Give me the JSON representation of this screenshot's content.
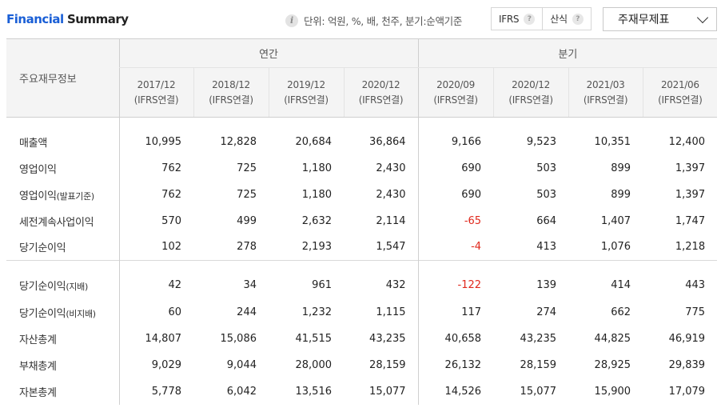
{
  "header": {
    "title_part1": "Financial",
    "title_part2": "Summary",
    "unit_text": "단위: 억원, %, 배, 천주, 분기:순액기준",
    "ifrs_label": "IFRS",
    "calc_label": "산식",
    "dropdown_value": "주재무제표"
  },
  "table": {
    "row_header": "주요재무정보",
    "group_annual": "연간",
    "group_quarter": "분기",
    "columns": [
      {
        "period": "2017/12",
        "basis": "(IFRS연결)"
      },
      {
        "period": "2018/12",
        "basis": "(IFRS연결)"
      },
      {
        "period": "2019/12",
        "basis": "(IFRS연결)"
      },
      {
        "period": "2020/12",
        "basis": "(IFRS연결)"
      },
      {
        "period": "2020/09",
        "basis": "(IFRS연결)"
      },
      {
        "period": "2020/12",
        "basis": "(IFRS연결)"
      },
      {
        "period": "2021/03",
        "basis": "(IFRS연결)"
      },
      {
        "period": "2021/06",
        "basis": "(IFRS연결)"
      }
    ],
    "rows": [
      {
        "label": "매출액",
        "sub": "",
        "values": [
          "10,995",
          "12,828",
          "20,684",
          "36,864",
          "9,166",
          "9,523",
          "10,351",
          "12,400"
        ]
      },
      {
        "label": "영업이익",
        "sub": "",
        "values": [
          "762",
          "725",
          "1,180",
          "2,430",
          "690",
          "503",
          "899",
          "1,397"
        ]
      },
      {
        "label": "영업이익",
        "sub": "(발표기준)",
        "values": [
          "762",
          "725",
          "1,180",
          "2,430",
          "690",
          "503",
          "899",
          "1,397"
        ]
      },
      {
        "label": "세전계속사업이익",
        "sub": "",
        "values": [
          "570",
          "499",
          "2,632",
          "2,114",
          "-65",
          "664",
          "1,407",
          "1,747"
        ]
      },
      {
        "label": "당기순이익",
        "sub": "",
        "values": [
          "102",
          "278",
          "2,193",
          "1,547",
          "-4",
          "413",
          "1,076",
          "1,218"
        ]
      },
      {
        "label": "당기순이익",
        "sub": "(지배)",
        "values": [
          "42",
          "34",
          "961",
          "432",
          "-122",
          "139",
          "414",
          "443"
        ]
      },
      {
        "label": "당기순이익",
        "sub": "(비지배)",
        "values": [
          "60",
          "244",
          "1,232",
          "1,115",
          "117",
          "274",
          "662",
          "775"
        ]
      },
      {
        "label": "자산총계",
        "sub": "",
        "values": [
          "14,807",
          "15,086",
          "41,515",
          "43,235",
          "40,658",
          "43,235",
          "44,825",
          "46,919"
        ]
      },
      {
        "label": "부채총계",
        "sub": "",
        "values": [
          "9,029",
          "9,044",
          "28,000",
          "28,159",
          "26,132",
          "28,159",
          "28,925",
          "29,839"
        ]
      },
      {
        "label": "자본총계",
        "sub": "",
        "values": [
          "5,778",
          "6,042",
          "13,516",
          "15,077",
          "14,526",
          "15,077",
          "15,900",
          "17,079"
        ]
      }
    ]
  }
}
